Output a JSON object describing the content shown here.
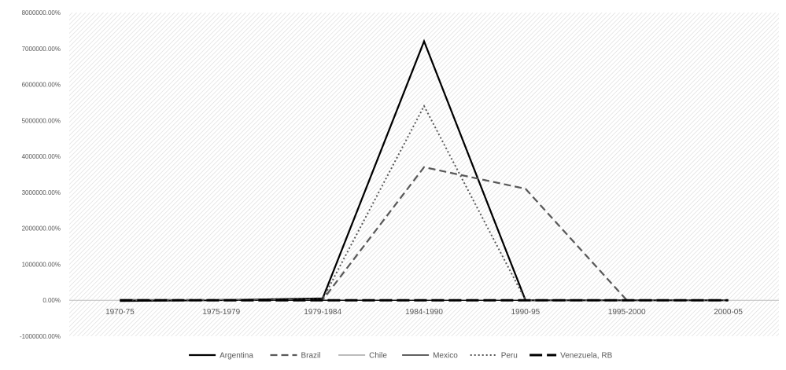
{
  "chart_data": {
    "type": "line",
    "title": "",
    "xlabel": "",
    "ylabel": "",
    "categories": [
      "1970-75",
      "1975-1979",
      "1979-1984",
      "1984-1990",
      "1990-95",
      "1995-2000",
      "2000-05"
    ],
    "ylim": [
      -1000000,
      8000000
    ],
    "y_ticks": [
      -1000000,
      0,
      1000000,
      2000000,
      3000000,
      4000000,
      5000000,
      6000000,
      7000000,
      8000000
    ],
    "y_tick_labels": [
      "-1000000.00%",
      "0.00%",
      "1000000.00%",
      "2000000.00%",
      "3000000.00%",
      "4000000.00%",
      "5000000.00%",
      "6000000.00%",
      "7000000.00%",
      "8000000.00%"
    ],
    "grid": false,
    "plot_background": "diagonal-hatch",
    "legend_position": "bottom",
    "series": [
      {
        "name": "Argentina",
        "style": "solid-thick",
        "color": "#000000",
        "values": [
          -20000,
          5000,
          50000,
          7200000,
          0,
          0,
          0
        ]
      },
      {
        "name": "Brazil",
        "style": "dashed",
        "color": "#595959",
        "values": [
          10000,
          10000,
          10000,
          3700000,
          3100000,
          0,
          0
        ]
      },
      {
        "name": "Chile",
        "style": "solid-gray",
        "color": "#a6a6a6",
        "values": [
          20000,
          10000,
          5000,
          0,
          0,
          0,
          0
        ]
      },
      {
        "name": "Mexico",
        "style": "solid-thin",
        "color": "#000000",
        "values": [
          0,
          0,
          0,
          0,
          0,
          0,
          0
        ]
      },
      {
        "name": "Peru",
        "style": "dotted",
        "color": "#595959",
        "values": [
          0,
          10000,
          30000,
          5400000,
          0,
          0,
          0
        ]
      },
      {
        "name": "Venezuela, RB",
        "style": "long-dash-thick",
        "color": "#000000",
        "values": [
          0,
          0,
          0,
          0,
          0,
          0,
          0
        ]
      }
    ]
  }
}
